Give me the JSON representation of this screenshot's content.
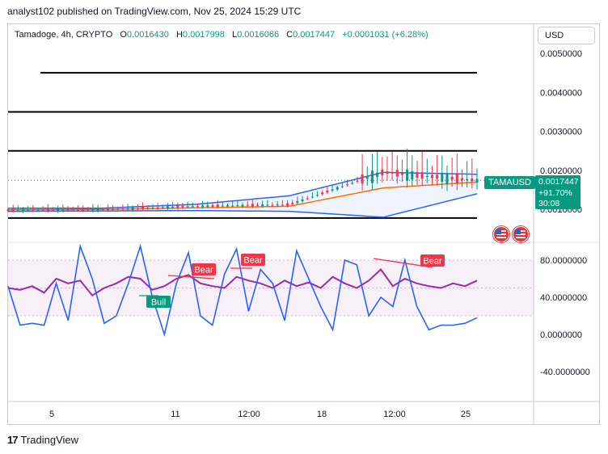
{
  "header": {
    "publisher": "analyst102 published on TradingView.com, Nov 25, 2024 15:29 UTC"
  },
  "legend": {
    "symbol": "Tamadoge, 4h, CRYPTO",
    "open_label": "O",
    "open": "0.0016430",
    "high_label": "H",
    "high": "0.0017998",
    "low_label": "L",
    "low": "0.0016066",
    "close_label": "C",
    "close": "0.0017447",
    "change": "+0.0001031 (+6.28%)"
  },
  "currency": "USD",
  "price_tag": {
    "ticker": "TAMAUSD",
    "price": "0.0017447",
    "pct": "+91.70%",
    "countdown": "30:08"
  },
  "logo": {
    "mark": "17",
    "text": "TradingView"
  },
  "colors": {
    "up": "#089981",
    "down": "#f23645",
    "bb_band": "#2962ff",
    "bb_mid": "#ff6d00",
    "stoch_k": "#2962ff",
    "stoch_d": "#9c27b0"
  },
  "chart_data": [
    {
      "type": "line",
      "title": "Tamadoge, 4h, CRYPTO",
      "yticks": [
        "0.0050000",
        "0.0040000",
        "0.0030000",
        "0.0020000",
        "0.0010000"
      ],
      "xticks": [
        "5",
        "11",
        "12:00",
        "18",
        "12:00",
        "25"
      ],
      "horizontal_levels": [
        0.0045,
        0.0035,
        0.0025,
        0.00078
      ],
      "series": [
        {
          "name": "Close",
          "x": [
            "5",
            "11",
            "12:00",
            "18",
            "12:00",
            "25"
          ],
          "values": [
            0.00098,
            0.00099,
            0.00108,
            0.00112,
            0.00195,
            0.00174
          ]
        },
        {
          "name": "BB Upper",
          "values": [
            0.00103,
            0.00103,
            0.00113,
            0.00135,
            0.00195,
            0.0019
          ]
        },
        {
          "name": "BB Middle",
          "values": [
            0.00099,
            0.001,
            0.00104,
            0.00108,
            0.00155,
            0.0017
          ]
        },
        {
          "name": "BB Lower",
          "values": [
            0.00095,
            0.00096,
            0.00097,
            0.00095,
            0.0008,
            0.0014
          ]
        }
      ]
    },
    {
      "type": "line",
      "yticks": [
        "80.0000000",
        "40.0000000",
        "0.0000000",
        "-40.0000000"
      ],
      "ylim": [
        -40,
        80
      ],
      "bands": [
        20,
        80
      ],
      "series": [
        {
          "name": "%K",
          "values": [
            52,
            10,
            12,
            10,
            55,
            15,
            95,
            60,
            12,
            20,
            55,
            95,
            40,
            0,
            55,
            88,
            20,
            10,
            65,
            92,
            25,
            70,
            55,
            15,
            90,
            60,
            30,
            5,
            80,
            75,
            20,
            40,
            30,
            80,
            30,
            5,
            10,
            10,
            12,
            18
          ]
        },
        {
          "name": "%D",
          "values": [
            50,
            48,
            52,
            45,
            60,
            55,
            58,
            42,
            50,
            55,
            62,
            60,
            48,
            52,
            60,
            64,
            55,
            52,
            50,
            62,
            58,
            55,
            50,
            58,
            52,
            56,
            50,
            62,
            55,
            50,
            58,
            70,
            52,
            60,
            55,
            52,
            50,
            55,
            52,
            58
          ]
        }
      ],
      "annotations": [
        "Bull",
        "Bear",
        "Bear",
        "Bear"
      ]
    }
  ]
}
